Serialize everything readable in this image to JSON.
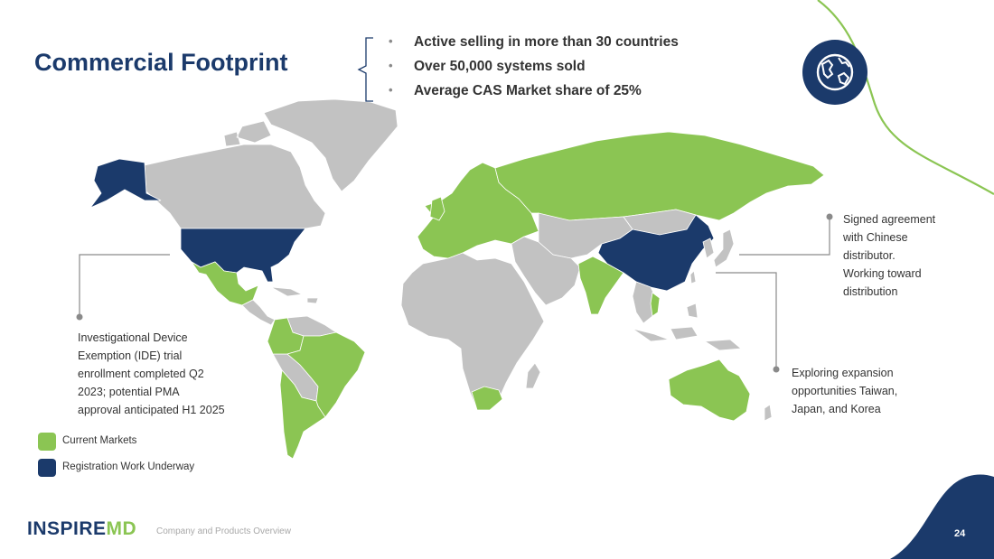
{
  "slide": {
    "title": "Commercial Footprint",
    "page_number": "24",
    "footer_text": "Company and Products Overview"
  },
  "highlights": [
    {
      "text": "Active selling in more than 30 countries"
    },
    {
      "text": "Over 50,000 systems sold"
    },
    {
      "text": "Average CAS Market share of 25%"
    }
  ],
  "bullet_glyph": "•",
  "badge": {
    "icon": "globe-icon"
  },
  "callouts": {
    "ide": [
      "Investigational Device",
      "Exemption (IDE) trial",
      "enrollment completed Q2",
      "2023; potential PMA",
      "approval anticipated H1 2025"
    ],
    "china": [
      "Signed agreement",
      "with Chinese",
      "distributor.",
      "Working toward",
      "distribution"
    ],
    "asia": [
      "Exploring expansion",
      "opportunities Taiwan,",
      "Japan, and Korea"
    ]
  },
  "legend": {
    "current_markets": "Current Markets",
    "registration_work": "Registration Work Underway"
  },
  "logo": {
    "main": "INSPIRE",
    "accent": "MD"
  },
  "colors": {
    "brand_navy": "#1b3a6b",
    "current_markets_green": "#8bc553",
    "other_countries_gray": "#c2c2c2",
    "accent_line_green": "#8bc553"
  }
}
